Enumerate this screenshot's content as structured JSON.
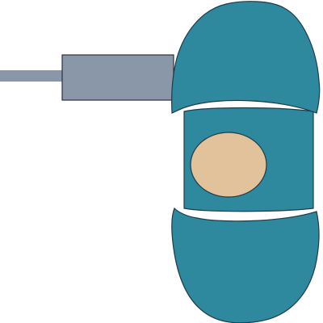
{
  "illustration": {
    "subject": "cable-connector-plugged-into-device",
    "colors": {
      "background": "#ffffff",
      "device_body": "#2e889e",
      "outline": "#1f3b47",
      "face_oval": "#e2c29b",
      "connector": "#8a97a8",
      "connector_outline": "#2a3340",
      "cable": "#8a97a8"
    }
  }
}
